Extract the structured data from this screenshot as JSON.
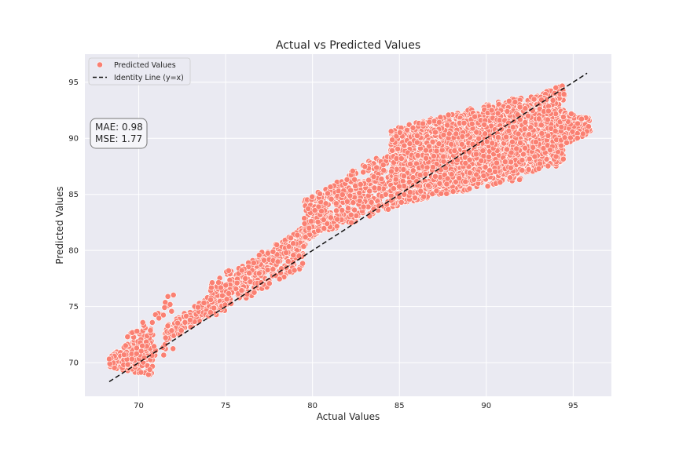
{
  "chart_data": {
    "type": "scatter",
    "title": "Actual vs Predicted Values",
    "xlabel": "Actual Values",
    "ylabel": "Predicted Values",
    "xlim": [
      66.9,
      97.2
    ],
    "ylim": [
      67.0,
      97.5
    ],
    "xticks": [
      70,
      75,
      80,
      85,
      90,
      95
    ],
    "yticks": [
      70,
      75,
      80,
      85,
      90,
      95
    ],
    "grid": true,
    "legend_position": "top-left",
    "series": [
      {
        "name": "Predicted Values",
        "kind": "scatter",
        "color": "#fa8072",
        "bands": [
          {
            "x": [
              68.3,
              70.8
            ],
            "y_at_start": [
              69.6,
              70.6
            ],
            "y_at_end": [
              68.8,
              72.9
            ],
            "points": 170
          },
          {
            "x": [
              69.0,
              72.0
            ],
            "y_at_start": [
              69.2,
              71.8
            ],
            "y_at_end": [
              71.0,
              76.5
            ],
            "points": 90
          },
          {
            "x": [
              71.5,
              80.5
            ],
            "y_at_start": [
              71.5,
              73.2
            ],
            "y_at_end": [
              81.5,
              83.3
            ],
            "points": 420
          },
          {
            "x": [
              74.0,
              79.5
            ],
            "y_at_start": [
              73.8,
              77.2
            ],
            "y_at_end": [
              78.5,
              82.0
            ],
            "points": 260
          },
          {
            "x": [
              79.5,
              86.0
            ],
            "y_at_start": [
              81.0,
              84.5
            ],
            "y_at_end": [
              84.5,
              90.5
            ],
            "points": 520
          },
          {
            "x": [
              84.5,
              92.0
            ],
            "y_at_start": [
              84.0,
              90.8
            ],
            "y_at_end": [
              86.3,
              93.8
            ],
            "points": 1400
          },
          {
            "x": [
              86.5,
              94.5
            ],
            "y_at_start": [
              85.5,
              90.5
            ],
            "y_at_end": [
              87.5,
              94.8
            ],
            "points": 1100
          },
          {
            "x": [
              91.0,
              96.0
            ],
            "y_at_start": [
              87.0,
              93.5
            ],
            "y_at_end": [
              90.5,
              91.8
            ],
            "points": 420
          }
        ]
      },
      {
        "name": "Identity Line (y=x)",
        "kind": "line",
        "color": "#111111",
        "dash": "dashed",
        "x": [
          68.3,
          95.8
        ],
        "y": [
          68.3,
          95.8
        ]
      }
    ],
    "annotations": [
      {
        "text": "MAE: 0.98\nMSE: 1.77",
        "position": "upper-left"
      }
    ]
  },
  "colors": {
    "plot_background": "#eaeaf2",
    "grid": "#ffffff",
    "point_fill": "#fa8072",
    "point_edge": "#ffffff",
    "identity_line": "#111111"
  }
}
